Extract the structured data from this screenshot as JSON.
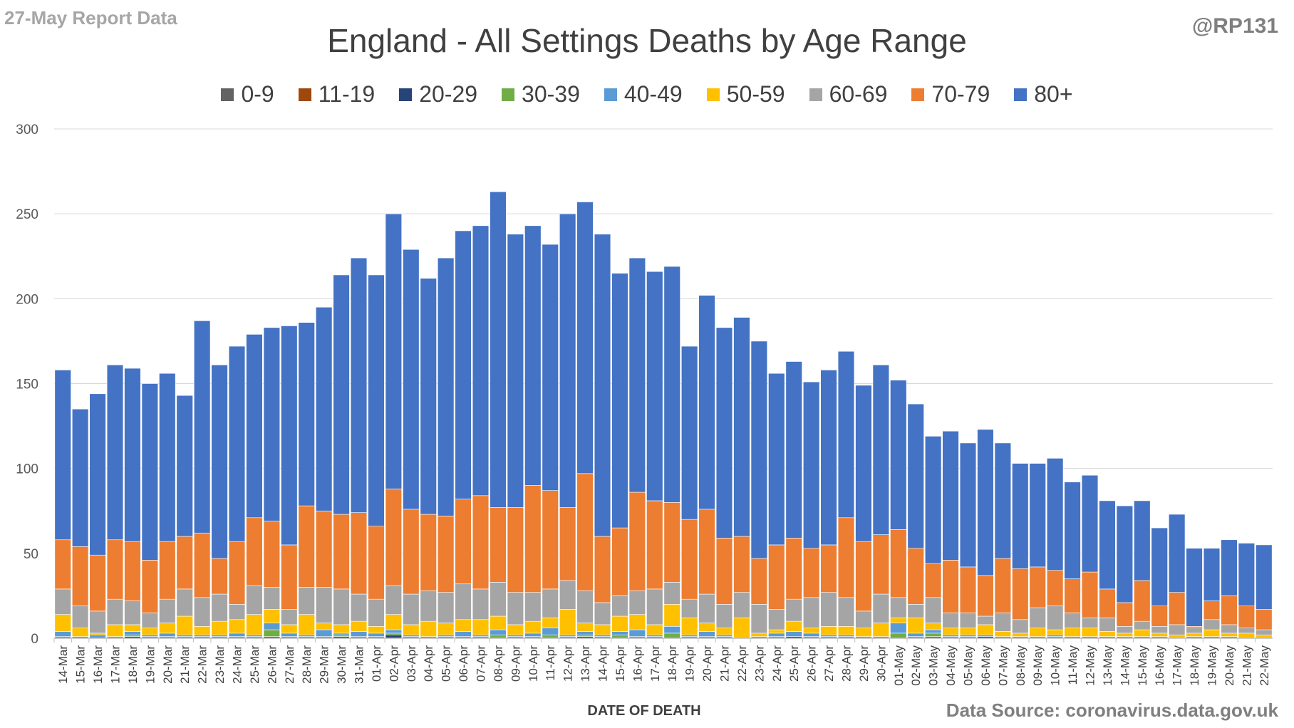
{
  "header": {
    "report_label": "27-May Report Data",
    "handle": "@RP131",
    "source": "Data Source: coronavirus.data.gov.uk"
  },
  "chart_data": {
    "type": "bar",
    "stacked": true,
    "title": "England - All Settings Deaths by Age Range",
    "xlabel": "DATE OF DEATH",
    "ylabel": "",
    "ylim": [
      0,
      300
    ],
    "yticks": [
      0,
      50,
      100,
      150,
      200,
      250,
      300
    ],
    "grid": true,
    "legend_position": "top",
    "categories": [
      "14-Mar",
      "15-Mar",
      "16-Mar",
      "17-Mar",
      "18-Mar",
      "19-Mar",
      "20-Mar",
      "21-Mar",
      "22-Mar",
      "23-Mar",
      "24-Mar",
      "25-Mar",
      "26-Mar",
      "27-Mar",
      "28-Mar",
      "29-Mar",
      "30-Mar",
      "31-Mar",
      "01-Apr",
      "02-Apr",
      "03-Apr",
      "04-Apr",
      "05-Apr",
      "06-Apr",
      "07-Apr",
      "08-Apr",
      "09-Apr",
      "10-Apr",
      "11-Apr",
      "12-Apr",
      "13-Apr",
      "14-Apr",
      "15-Apr",
      "16-Apr",
      "17-Apr",
      "18-Apr",
      "19-Apr",
      "20-Apr",
      "21-Apr",
      "22-Apr",
      "23-Apr",
      "24-Apr",
      "25-Apr",
      "26-Apr",
      "27-Apr",
      "28-Apr",
      "29-Apr",
      "30-Apr",
      "01-May",
      "02-May",
      "03-May",
      "04-May",
      "05-May",
      "06-May",
      "07-May",
      "08-May",
      "09-May",
      "10-May",
      "11-May",
      "12-May",
      "13-May",
      "14-May",
      "15-May",
      "16-May",
      "17-May",
      "18-May",
      "19-May",
      "20-May",
      "21-May",
      "22-May"
    ],
    "series": [
      {
        "name": "0-9",
        "color": "#636363",
        "values": [
          0,
          0,
          0,
          0,
          0,
          0,
          0,
          0,
          0,
          0,
          0,
          0,
          0,
          0,
          0,
          0,
          0,
          0,
          0,
          0,
          0,
          0,
          0,
          0,
          0,
          0,
          0,
          0,
          0,
          0,
          0,
          0,
          0,
          0,
          0,
          0,
          0,
          0,
          0,
          0,
          0,
          0,
          0,
          0,
          0,
          0,
          0,
          0,
          0,
          0,
          0,
          0,
          0,
          0,
          0,
          0,
          0,
          0,
          0,
          0,
          0,
          0,
          0,
          0,
          0,
          0,
          0,
          0,
          0,
          0
        ]
      },
      {
        "name": "11-19",
        "color": "#9e480e",
        "values": [
          0,
          0,
          0,
          0,
          0,
          0,
          0,
          0,
          0,
          0,
          0,
          0,
          1,
          0,
          0,
          0,
          0,
          0,
          0,
          0,
          0,
          0,
          0,
          0,
          0,
          0,
          0,
          0,
          0,
          0,
          0,
          0,
          0,
          0,
          0,
          0,
          0,
          0,
          0,
          0,
          0,
          0,
          0,
          0,
          0,
          0,
          0,
          0,
          0,
          0,
          1,
          0,
          0,
          0,
          0,
          0,
          0,
          0,
          0,
          0,
          0,
          0,
          0,
          0,
          0,
          0,
          0,
          0,
          0,
          0
        ]
      },
      {
        "name": "20-29",
        "color": "#264478",
        "values": [
          0,
          0,
          0,
          0,
          1,
          0,
          0,
          0,
          0,
          0,
          0,
          0,
          0,
          0,
          0,
          0,
          1,
          0,
          0,
          2,
          0,
          0,
          0,
          0,
          0,
          0,
          0,
          0,
          0,
          0,
          1,
          0,
          0,
          0,
          0,
          0,
          0,
          0,
          0,
          0,
          0,
          0,
          1,
          0,
          0,
          0,
          0,
          0,
          0,
          0,
          0,
          0,
          0,
          1,
          0,
          0,
          0,
          0,
          0,
          0,
          0,
          0,
          0,
          0,
          0,
          0,
          0,
          0,
          0,
          0
        ]
      },
      {
        "name": "30-39",
        "color": "#70ad47",
        "values": [
          1,
          0,
          0,
          0,
          1,
          1,
          1,
          1,
          1,
          1,
          1,
          1,
          4,
          1,
          1,
          1,
          1,
          1,
          1,
          1,
          1,
          0,
          1,
          1,
          1,
          2,
          1,
          1,
          2,
          1,
          1,
          1,
          2,
          1,
          1,
          3,
          1,
          1,
          1,
          0,
          0,
          1,
          0,
          1,
          1,
          1,
          0,
          0,
          3,
          1,
          2,
          1,
          1,
          0,
          0,
          0,
          0,
          1,
          0,
          0,
          0,
          0,
          0,
          0,
          0,
          0,
          0,
          0,
          0,
          0
        ]
      },
      {
        "name": "40-49",
        "color": "#5b9bd5",
        "values": [
          3,
          1,
          2,
          1,
          2,
          1,
          2,
          1,
          1,
          1,
          2,
          1,
          4,
          2,
          1,
          4,
          1,
          3,
          2,
          2,
          1,
          1,
          1,
          3,
          1,
          3,
          1,
          2,
          4,
          1,
          2,
          1,
          2,
          4,
          1,
          4,
          1,
          3,
          1,
          0,
          1,
          2,
          3,
          2,
          1,
          1,
          1,
          1,
          6,
          2,
          2,
          1,
          1,
          1,
          1,
          1,
          1,
          1,
          1,
          1,
          1,
          1,
          1,
          1,
          0,
          1,
          1,
          1,
          0,
          0
        ]
      },
      {
        "name": "50-59",
        "color": "#ffc000",
        "values": [
          10,
          5,
          1,
          7,
          4,
          4,
          6,
          11,
          5,
          8,
          8,
          12,
          8,
          5,
          12,
          4,
          5,
          6,
          4,
          9,
          6,
          9,
          7,
          7,
          9,
          8,
          6,
          7,
          6,
          15,
          5,
          6,
          9,
          9,
          6,
          13,
          10,
          5,
          4,
          12,
          2,
          2,
          6,
          3,
          5,
          5,
          5,
          8,
          3,
          9,
          4,
          4,
          4,
          6,
          3,
          2,
          5,
          3,
          5,
          5,
          3,
          2,
          4,
          2,
          2,
          2,
          4,
          2,
          3,
          2
        ]
      },
      {
        "name": "60-69",
        "color": "#a5a5a5",
        "values": [
          15,
          13,
          13,
          15,
          14,
          9,
          14,
          16,
          17,
          16,
          9,
          17,
          13,
          9,
          16,
          21,
          21,
          16,
          16,
          17,
          18,
          18,
          18,
          21,
          18,
          20,
          19,
          17,
          17,
          17,
          19,
          13,
          12,
          14,
          21,
          13,
          11,
          17,
          14,
          15,
          17,
          12,
          13,
          18,
          20,
          17,
          10,
          17,
          12,
          8,
          15,
          9,
          9,
          5,
          11,
          8,
          12,
          14,
          9,
          6,
          8,
          4,
          5,
          4,
          6,
          3,
          6,
          5,
          3,
          3
        ]
      },
      {
        "name": "70-79",
        "color": "#ed7d31",
        "values": [
          29,
          35,
          33,
          35,
          35,
          31,
          34,
          31,
          38,
          21,
          37,
          40,
          39,
          38,
          48,
          45,
          44,
          48,
          43,
          57,
          50,
          45,
          45,
          50,
          55,
          44,
          50,
          63,
          58,
          43,
          69,
          39,
          40,
          58,
          52,
          47,
          47,
          50,
          39,
          33,
          27,
          38,
          36,
          29,
          28,
          47,
          41,
          35,
          40,
          33,
          20,
          31,
          27,
          24,
          32,
          30,
          24,
          21,
          20,
          27,
          17,
          14,
          24,
          12,
          19,
          1,
          11,
          17,
          13,
          12
        ]
      },
      {
        "name": "80+",
        "color": "#4472c4",
        "values": [
          100,
          81,
          95,
          103,
          102,
          104,
          99,
          83,
          125,
          114,
          115,
          108,
          114,
          129,
          108,
          120,
          141,
          150,
          148,
          162,
          153,
          139,
          152,
          158,
          159,
          186,
          161,
          153,
          145,
          173,
          160,
          178,
          150,
          138,
          135,
          139,
          102,
          126,
          124,
          129,
          128,
          101,
          104,
          98,
          103,
          98,
          92,
          100,
          88,
          85,
          75,
          76,
          73,
          86,
          68,
          62,
          61,
          66,
          57,
          57,
          52,
          57,
          47,
          46,
          46,
          46,
          31,
          33,
          37,
          38
        ]
      }
    ]
  }
}
